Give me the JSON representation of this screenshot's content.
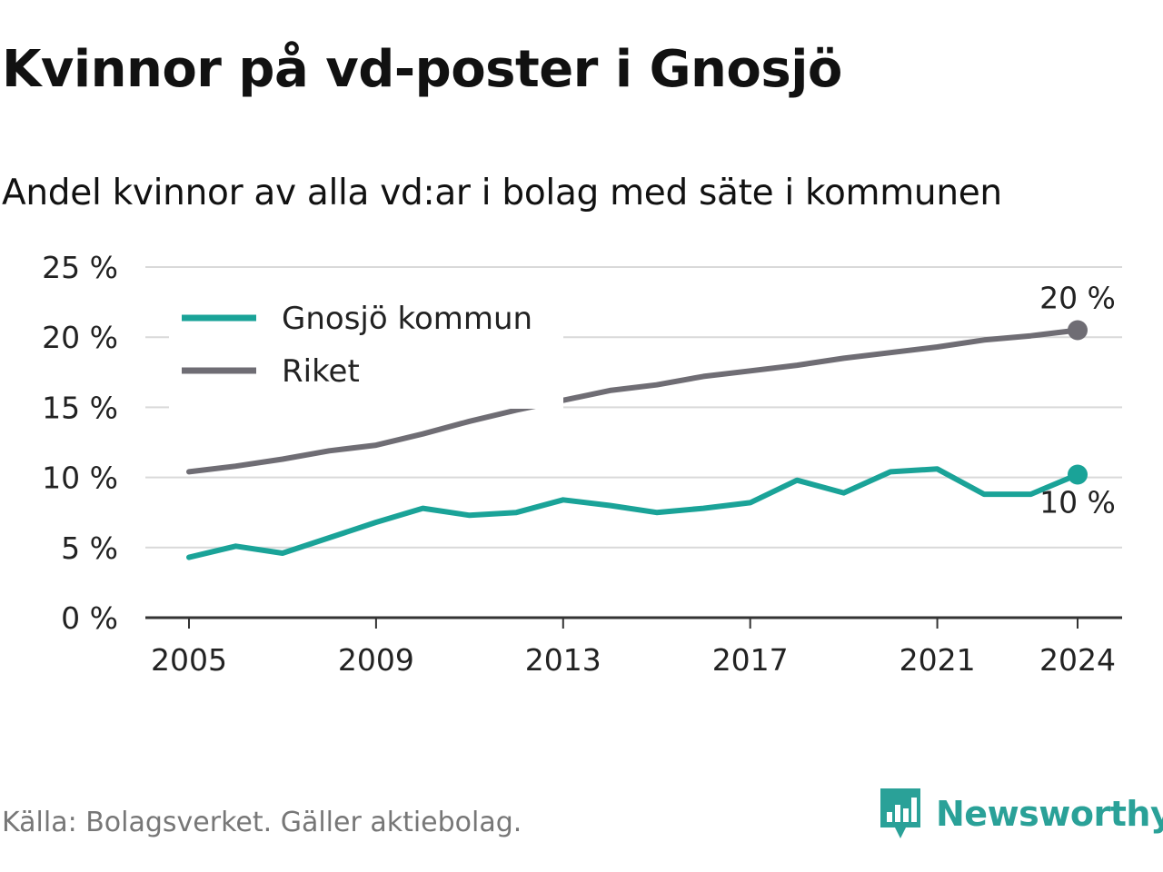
{
  "title": "Kvinnor på vd-poster i Gnosjö",
  "subtitle": "Andel kvinnor av alla vd:ar i bolag med säte i kommunen",
  "source": "Källa: Bolagsverket. Gäller aktiebolag.",
  "brand": {
    "name": "Newsworthy",
    "icon": "newsworthy-logo-icon",
    "color": "#2aa198"
  },
  "chart_data": {
    "type": "line",
    "title": "Kvinnor på vd-poster i Gnosjö",
    "subtitle": "Andel kvinnor av alla vd:ar i bolag med säte i kommunen",
    "xlabel": "",
    "ylabel": "",
    "x": [
      2005,
      2006,
      2007,
      2008,
      2009,
      2010,
      2011,
      2012,
      2013,
      2014,
      2015,
      2016,
      2017,
      2018,
      2019,
      2020,
      2021,
      2022,
      2023,
      2024
    ],
    "x_ticks": [
      "2005",
      "2009",
      "2013",
      "2017",
      "2021",
      "2024"
    ],
    "ylim": [
      0,
      25
    ],
    "y_ticks": [
      "0 %",
      "5 %",
      "10 %",
      "15 %",
      "20 %",
      "25 %"
    ],
    "grid": true,
    "legend_position": "top-left",
    "series": [
      {
        "name": "Gnosjö kommun",
        "color": "#1aa398",
        "values": [
          4.3,
          5.1,
          4.6,
          5.7,
          6.8,
          7.8,
          7.3,
          7.5,
          8.4,
          8.0,
          7.5,
          7.8,
          8.2,
          9.8,
          8.9,
          10.4,
          10.6,
          8.8,
          8.8,
          10.2
        ],
        "end_label": "10 %"
      },
      {
        "name": "Riket",
        "color": "#6f6d74",
        "values": [
          10.4,
          10.8,
          11.3,
          11.9,
          12.3,
          13.1,
          14.0,
          14.8,
          15.5,
          16.2,
          16.6,
          17.2,
          17.6,
          18.0,
          18.5,
          18.9,
          19.3,
          19.8,
          20.1,
          20.5
        ],
        "end_label": "20 %"
      }
    ]
  }
}
